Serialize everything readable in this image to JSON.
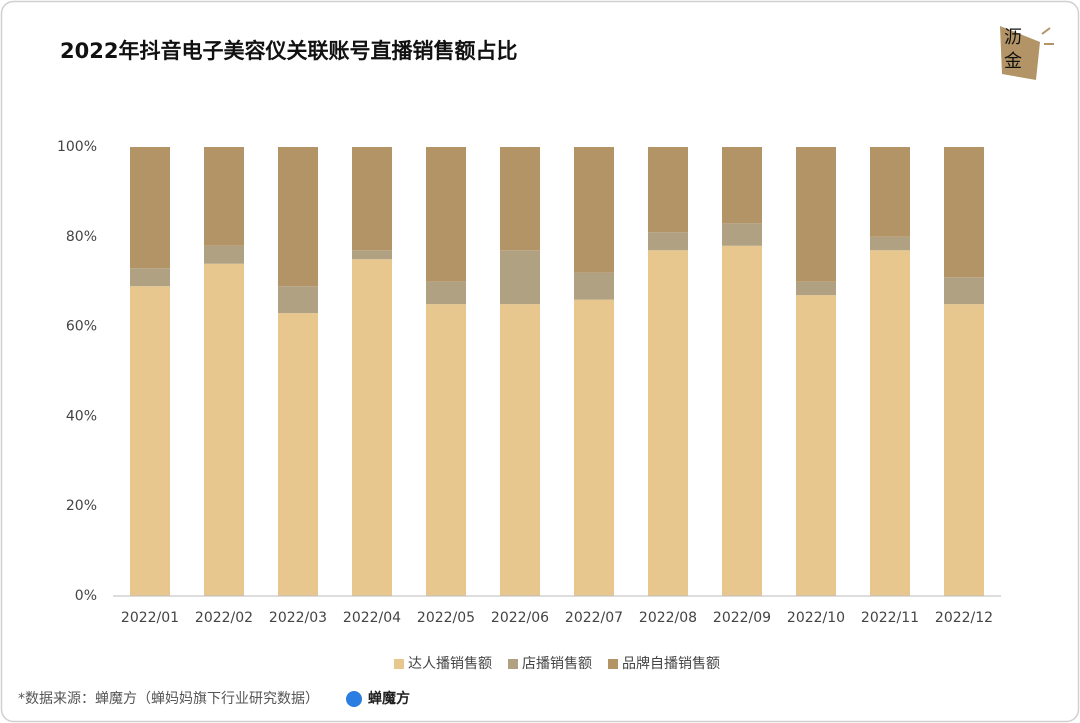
{
  "chart_data": {
    "type": "stacked_bar",
    "title": "2022年抖音电子美容仪关联账号直播销售额占比",
    "logo_text": [
      "沥",
      "金"
    ],
    "categories": [
      "2022/01",
      "2022/02",
      "2022/03",
      "2022/04",
      "2022/05",
      "2022/06",
      "2022/07",
      "2022/08",
      "2022/09",
      "2022/10",
      "2022/11",
      "2022/12"
    ],
    "series": [
      {
        "name": "达人播销售额",
        "color": "#e8c78e",
        "values": [
          69,
          74,
          63,
          75,
          65,
          65,
          66,
          77,
          78,
          67,
          77,
          65
        ]
      },
      {
        "name": "店播销售额",
        "color": "#b1a183",
        "values": [
          4,
          4,
          6,
          2,
          5,
          12,
          6,
          4,
          5,
          3,
          3,
          6
        ]
      },
      {
        "name": "品牌自播销售额",
        "color": "#b39466",
        "values": [
          27,
          22,
          31,
          23,
          30,
          23,
          28,
          19,
          17,
          30,
          20,
          29
        ]
      }
    ],
    "ylim": [
      0,
      100
    ],
    "yticks": [
      {
        "value": 0,
        "label": "0%"
      },
      {
        "value": 20,
        "label": "20%"
      },
      {
        "value": 40,
        "label": "40%"
      },
      {
        "value": 60,
        "label": "60%"
      },
      {
        "value": 80,
        "label": "80%"
      },
      {
        "value": 100,
        "label": "100%"
      }
    ],
    "grid": false,
    "legend": "bottom",
    "source": "*数据来源：蝉魔方（蝉妈妈旗下行业研究数据）",
    "source_logo": "蝉魔方"
  }
}
